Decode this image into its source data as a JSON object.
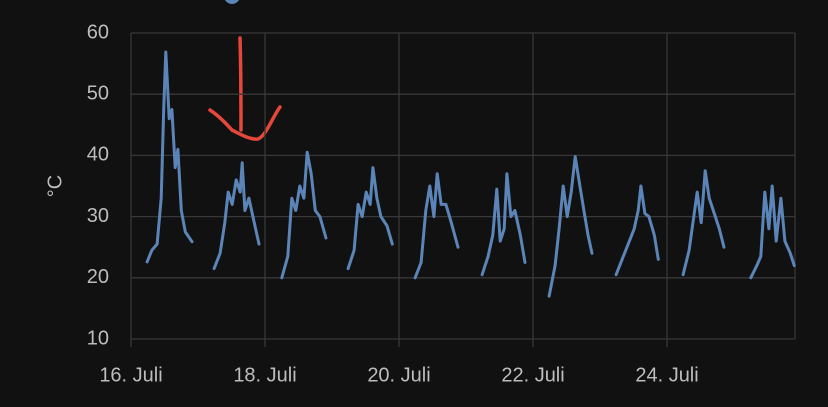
{
  "chart_data": {
    "type": "line",
    "y_label": "°C",
    "x": [
      16.24,
      16.31,
      16.39,
      16.45,
      16.49,
      16.52,
      16.57,
      16.61,
      16.66,
      16.7,
      16.75,
      16.81,
      16.91,
      17.1,
      17.24,
      17.33,
      17.4,
      17.45,
      17.51,
      17.57,
      17.63,
      17.66,
      17.7,
      17.76,
      17.82,
      17.91,
      18.1,
      18.25,
      18.34,
      18.4,
      18.46,
      18.52,
      18.58,
      18.63,
      18.69,
      18.75,
      18.82,
      18.91,
      19.1,
      19.24,
      19.33,
      19.39,
      19.45,
      19.51,
      19.57,
      19.61,
      19.67,
      19.73,
      19.82,
      19.9,
      20.1,
      20.24,
      20.33,
      20.4,
      20.46,
      20.52,
      20.57,
      20.63,
      20.7,
      20.78,
      20.88,
      21.1,
      21.24,
      21.33,
      21.4,
      21.46,
      21.51,
      21.57,
      21.61,
      21.67,
      21.73,
      21.81,
      21.88,
      22.1,
      22.24,
      22.33,
      22.39,
      22.45,
      22.51,
      22.57,
      22.63,
      22.7,
      22.76,
      22.82,
      22.88,
      23.1,
      23.24,
      23.33,
      23.42,
      23.51,
      23.57,
      23.61,
      23.67,
      23.73,
      23.81,
      23.87,
      24.1,
      24.24,
      24.33,
      24.4,
      24.45,
      24.51,
      24.57,
      24.63,
      24.69,
      24.78,
      24.85,
      25.1,
      25.25,
      25.34,
      25.4,
      25.46,
      25.52,
      25.57,
      25.63,
      25.7,
      25.76,
      25.84,
      25.9
    ],
    "values": [
      22.6,
      24.5,
      25.5,
      33,
      48,
      56.9,
      46,
      47.5,
      38,
      41,
      31,
      27.5,
      25.9,
      null,
      21.5,
      24,
      29,
      34,
      32,
      36,
      34,
      38.8,
      31,
      33,
      30,
      25.5,
      null,
      20,
      23.5,
      33,
      31,
      35,
      33,
      40.5,
      37,
      31,
      30,
      26.5,
      null,
      21.5,
      24.5,
      32,
      30,
      34,
      32,
      38,
      33,
      30,
      28.5,
      25.5,
      null,
      20,
      22.5,
      31,
      35,
      30,
      37,
      32,
      32,
      29,
      25,
      null,
      20.5,
      23.5,
      27,
      34.5,
      26,
      28,
      37,
      30,
      31,
      27,
      22.5,
      null,
      17,
      22,
      28,
      35,
      30,
      34,
      39.8,
      35,
      31,
      27,
      24,
      null,
      20.5,
      23,
      25.5,
      28,
      31,
      35,
      30.5,
      30,
      27,
      23,
      null,
      20.5,
      24.5,
      30,
      34,
      29,
      37.5,
      33,
      31,
      28,
      25,
      null,
      20,
      22,
      23.5,
      34,
      28,
      35,
      26,
      33,
      26,
      24,
      22
    ],
    "color": "#5b85b8",
    "xlim": [
      16,
      25.91
    ],
    "ylim": [
      10,
      60
    ],
    "xticks": [
      {
        "value": 16,
        "label": "16. Juli"
      },
      {
        "value": 18,
        "label": "18. Juli"
      },
      {
        "value": 20,
        "label": "20. Juli"
      },
      {
        "value": 22,
        "label": "22. Juli"
      },
      {
        "value": 24,
        "label": "24. Juli"
      }
    ],
    "yticks": [
      10,
      20,
      30,
      40,
      50,
      60
    ],
    "grid": true
  }
}
